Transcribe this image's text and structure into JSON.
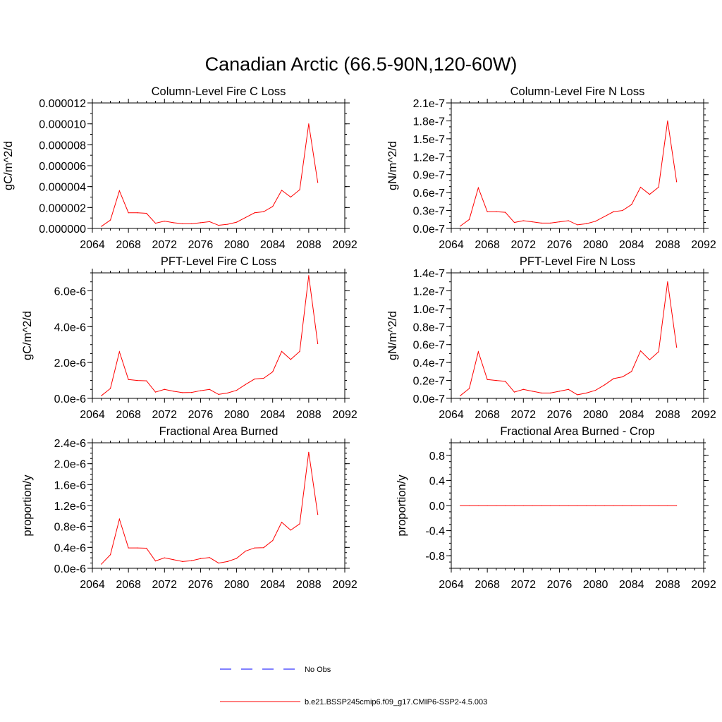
{
  "figure": {
    "title": "Canadian Arctic (66.5-90N,120-60W)",
    "colors": {
      "model": "#ff0000",
      "obs": "#0000ff",
      "axis": "#000000"
    }
  },
  "legend": {
    "items": [
      {
        "label": "No Obs",
        "style": "dashed",
        "color": "#0000ff"
      },
      {
        "label": "b.e21.BSSP245cmip6.f09_g17.CMIP6-SSP2-4.5.003",
        "style": "solid",
        "color": "#ff0000"
      }
    ]
  },
  "chart_data": [
    {
      "type": "line",
      "title": "Column-Level Fire C Loss",
      "ylabel": "gC/m^2/d",
      "xlim": [
        2064,
        2092
      ],
      "xticks": [
        2064,
        2068,
        2072,
        2076,
        2080,
        2084,
        2088,
        2092
      ],
      "xtick_labels": [
        "2064",
        "2068",
        "2072",
        "2076",
        "2080",
        "2084",
        "2088",
        "2092"
      ],
      "ylim": [
        0,
        1.2e-05
      ],
      "yticks": [
        0,
        2e-06,
        4e-06,
        6e-06,
        8e-06,
        1e-05,
        1.2e-05
      ],
      "ytick_labels": [
        "0.000000",
        "0.000002",
        "0.000004",
        "0.000006",
        "0.000008",
        "0.000010",
        "0.000012"
      ],
      "yminor": 1e-06,
      "series": [
        {
          "name": "b.e21.BSSP245cmip6.f09_g17.CMIP6-SSP2-4.5.003",
          "x": [
            2065,
            2066,
            2067,
            2068,
            2069,
            2070,
            2071,
            2072,
            2073,
            2074,
            2075,
            2076,
            2077,
            2078,
            2079,
            2080,
            2081,
            2082,
            2083,
            2084,
            2085,
            2086,
            2087,
            2088,
            2089
          ],
          "values": [
            2e-07,
            8e-07,
            3.6e-06,
            1.5e-06,
            1.5e-06,
            1.45e-06,
            5e-07,
            7e-07,
            5.5e-07,
            4.5e-07,
            4.5e-07,
            5.5e-07,
            6.5e-07,
            3e-07,
            4e-07,
            6e-07,
            1.05e-06,
            1.5e-06,
            1.6e-06,
            2.1e-06,
            3.65e-06,
            3e-06,
            3.7e-06,
            1e-05,
            4.4e-06
          ]
        }
      ]
    },
    {
      "type": "line",
      "title": "Column-Level Fire N Loss",
      "ylabel": "gN/m^2/d",
      "xlim": [
        2064,
        2092
      ],
      "xticks": [
        2064,
        2068,
        2072,
        2076,
        2080,
        2084,
        2088,
        2092
      ],
      "xtick_labels": [
        "2064",
        "2068",
        "2072",
        "2076",
        "2080",
        "2084",
        "2088",
        "2092"
      ],
      "ylim": [
        0,
        2.1e-07
      ],
      "yticks": [
        0,
        3e-08,
        6e-08,
        9e-08,
        1.2e-07,
        1.5e-07,
        1.8e-07,
        2.1e-07
      ],
      "ytick_labels": [
        "0.0e-7",
        "0.3e-7",
        "0.6e-7",
        "0.9e-7",
        "1.2e-7",
        "1.5e-7",
        "1.8e-7",
        "2.1e-7"
      ],
      "yminor": 1e-08,
      "series": [
        {
          "name": "b.e21.BSSP245cmip6.f09_g17.CMIP6-SSP2-4.5.003",
          "x": [
            2065,
            2066,
            2067,
            2068,
            2069,
            2070,
            2071,
            2072,
            2073,
            2074,
            2075,
            2076,
            2077,
            2078,
            2079,
            2080,
            2081,
            2082,
            2083,
            2084,
            2085,
            2086,
            2087,
            2088,
            2089
          ],
          "values": [
            4e-09,
            1.5e-08,
            6.8e-08,
            2.8e-08,
            2.8e-08,
            2.7e-08,
            1e-08,
            1.3e-08,
            1.1e-08,
            9e-09,
            9e-09,
            1.1e-08,
            1.3e-08,
            6e-09,
            8e-09,
            1.2e-08,
            2e-08,
            2.8e-08,
            3e-08,
            4e-08,
            6.9e-08,
            5.7e-08,
            6.9e-08,
            1.8e-07,
            7.8e-08
          ]
        }
      ]
    },
    {
      "type": "line",
      "title": "PFT-Level Fire C Loss",
      "ylabel": "gC/m^2/d",
      "xlim": [
        2064,
        2092
      ],
      "xticks": [
        2064,
        2068,
        2072,
        2076,
        2080,
        2084,
        2088,
        2092
      ],
      "xtick_labels": [
        "2064",
        "2068",
        "2072",
        "2076",
        "2080",
        "2084",
        "2088",
        "2092"
      ],
      "ylim": [
        0,
        7e-06
      ],
      "yticks": [
        0,
        2e-06,
        4e-06,
        6e-06
      ],
      "ytick_labels": [
        "0.0e-6",
        "2.0e-6",
        "4.0e-6",
        "6.0e-6"
      ],
      "yminor": 5e-07,
      "series": [
        {
          "name": "b.e21.BSSP245cmip6.f09_g17.CMIP6-SSP2-4.5.003",
          "x": [
            2065,
            2066,
            2067,
            2068,
            2069,
            2070,
            2071,
            2072,
            2073,
            2074,
            2075,
            2076,
            2077,
            2078,
            2079,
            2080,
            2081,
            2082,
            2083,
            2084,
            2085,
            2086,
            2087,
            2088,
            2089
          ],
          "values": [
            1.5e-07,
            5.5e-07,
            2.6e-06,
            1.05e-06,
            1e-06,
            9.8e-07,
            3.5e-07,
            5e-07,
            4e-07,
            3.2e-07,
            3.3e-07,
            4.3e-07,
            5e-07,
            2.2e-07,
            3e-07,
            4.5e-07,
            7.8e-07,
            1.08e-06,
            1.12e-06,
            1.48e-06,
            2.62e-06,
            2.17e-06,
            2.62e-06,
            6.85e-06,
            3.05e-06
          ]
        }
      ]
    },
    {
      "type": "line",
      "title": "PFT-Level Fire N Loss",
      "ylabel": "gN/m^2/d",
      "xlim": [
        2064,
        2092
      ],
      "xticks": [
        2064,
        2068,
        2072,
        2076,
        2080,
        2084,
        2088,
        2092
      ],
      "xtick_labels": [
        "2064",
        "2068",
        "2072",
        "2076",
        "2080",
        "2084",
        "2088",
        "2092"
      ],
      "ylim": [
        0,
        1.4e-07
      ],
      "yticks": [
        0,
        2e-08,
        4e-08,
        6e-08,
        8e-08,
        1e-07,
        1.2e-07,
        1.4e-07
      ],
      "ytick_labels": [
        "0.0e-7",
        "0.2e-7",
        "0.4e-7",
        "0.6e-7",
        "0.8e-7",
        "1.0e-7",
        "1.2e-7",
        "1.4e-7"
      ],
      "yminor": 1e-08,
      "series": [
        {
          "name": "b.e21.BSSP245cmip6.f09_g17.CMIP6-SSP2-4.5.003",
          "x": [
            2065,
            2066,
            2067,
            2068,
            2069,
            2070,
            2071,
            2072,
            2073,
            2074,
            2075,
            2076,
            2077,
            2078,
            2079,
            2080,
            2081,
            2082,
            2083,
            2084,
            2085,
            2086,
            2087,
            2088,
            2089
          ],
          "values": [
            3e-09,
            1.1e-08,
            5.2e-08,
            2.1e-08,
            2e-08,
            1.9e-08,
            7e-09,
            1e-08,
            8e-09,
            6e-09,
            6e-09,
            8e-09,
            1e-08,
            4e-09,
            6e-09,
            9e-09,
            1.5e-08,
            2.2e-08,
            2.4e-08,
            3e-08,
            5.3e-08,
            4.3e-08,
            5.2e-08,
            1.3e-07,
            5.7e-08
          ]
        }
      ]
    },
    {
      "type": "line",
      "title": "Fractional Area Burned",
      "ylabel": "proportion/y",
      "xlim": [
        2064,
        2092
      ],
      "xticks": [
        2064,
        2068,
        2072,
        2076,
        2080,
        2084,
        2088,
        2092
      ],
      "xtick_labels": [
        "2064",
        "2068",
        "2072",
        "2076",
        "2080",
        "2084",
        "2088",
        "2092"
      ],
      "ylim": [
        0,
        2.4e-06
      ],
      "yticks": [
        0,
        4e-07,
        8e-07,
        1.2e-06,
        1.6e-06,
        2e-06,
        2.4e-06
      ],
      "ytick_labels": [
        "0.0e-6",
        "0.4e-6",
        "0.8e-6",
        "1.2e-6",
        "1.6e-6",
        "2.0e-6",
        "2.4e-6"
      ],
      "yminor": 1e-07,
      "series": [
        {
          "name": "b.e21.BSSP245cmip6.f09_g17.CMIP6-SSP2-4.5.003",
          "x": [
            2065,
            2066,
            2067,
            2068,
            2069,
            2070,
            2071,
            2072,
            2073,
            2074,
            2075,
            2076,
            2077,
            2078,
            2079,
            2080,
            2081,
            2082,
            2083,
            2084,
            2085,
            2086,
            2087,
            2088,
            2089
          ],
          "values": [
            8e-08,
            2.6e-07,
            9.4e-07,
            3.9e-07,
            3.9e-07,
            3.85e-07,
            1.4e-07,
            2e-07,
            1.65e-07,
            1.3e-07,
            1.45e-07,
            1.85e-07,
            2.05e-07,
            1e-07,
            1.3e-07,
            1.9e-07,
            3.3e-07,
            3.9e-07,
            3.95e-07,
            5.3e-07,
            8.8e-07,
            7.3e-07,
            8.5e-07,
            2.22e-06,
            1.03e-06
          ]
        }
      ]
    },
    {
      "type": "line",
      "title": "Fractional Area Burned - Crop",
      "ylabel": "proportion/y",
      "xlim": [
        2064,
        2092
      ],
      "xticks": [
        2064,
        2068,
        2072,
        2076,
        2080,
        2084,
        2088,
        2092
      ],
      "xtick_labels": [
        "2064",
        "2068",
        "2072",
        "2076",
        "2080",
        "2084",
        "2088",
        "2092"
      ],
      "ylim": [
        -1,
        1
      ],
      "yticks": [
        -0.8,
        -0.4,
        0,
        0.4,
        0.8
      ],
      "ytick_labels": [
        "-0.8",
        "-0.4",
        "0.0",
        "0.4",
        "0.8"
      ],
      "yminor": 0.1,
      "series": [
        {
          "name": "b.e21.BSSP245cmip6.f09_g17.CMIP6-SSP2-4.5.003",
          "x": [
            2065,
            2066,
            2067,
            2068,
            2069,
            2070,
            2071,
            2072,
            2073,
            2074,
            2075,
            2076,
            2077,
            2078,
            2079,
            2080,
            2081,
            2082,
            2083,
            2084,
            2085,
            2086,
            2087,
            2088,
            2089
          ],
          "values": [
            0,
            0,
            0,
            0,
            0,
            0,
            0,
            0,
            0,
            0,
            0,
            0,
            0,
            0,
            0,
            0,
            0,
            0,
            0,
            0,
            0,
            0,
            0,
            0,
            0
          ]
        }
      ]
    }
  ]
}
